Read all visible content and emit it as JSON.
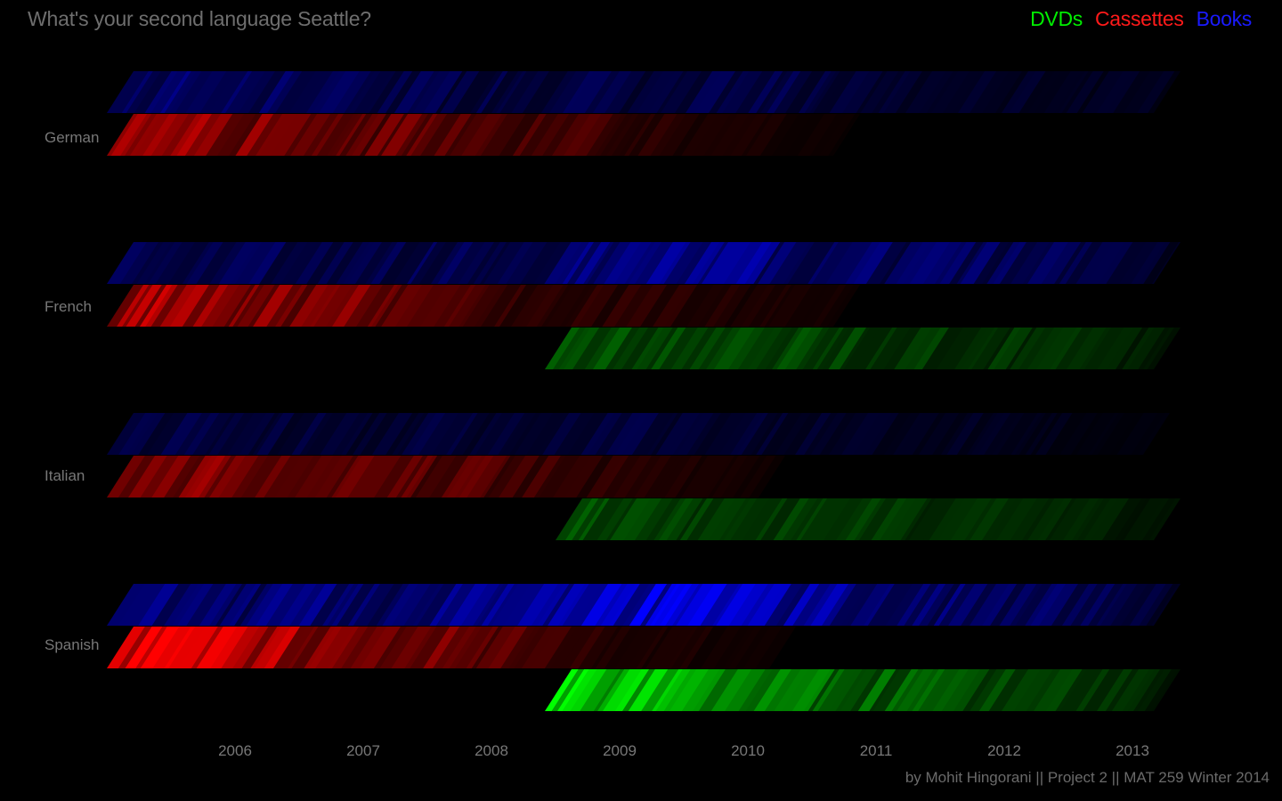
{
  "title": "What's your second language Seattle?",
  "legend": [
    {
      "label": "DVDs",
      "color": "#00ee00"
    },
    {
      "label": "Cassettes",
      "color": "#ff1a1a"
    },
    {
      "label": "Books",
      "color": "#1a1aff"
    }
  ],
  "footer": "by Mohit Hingorani || Project 2 || MAT 259 Winter 2014",
  "chart_data": {
    "type": "heatmap",
    "title": "What's your second language Seattle?",
    "x_axis": {
      "label": "",
      "tick_labels": [
        "2006",
        "2007",
        "2008",
        "2009",
        "2010",
        "2011",
        "2012",
        "2013"
      ],
      "range": [
        "2005-07",
        "2013-10"
      ]
    },
    "y_categories": [
      "German",
      "French",
      "Italian",
      "Spanish"
    ],
    "media": [
      {
        "name": "DVDs",
        "color": "#00ff00"
      },
      {
        "name": "Cassettes",
        "color": "#ff0000"
      },
      {
        "name": "Books",
        "color": "#0000ff"
      }
    ],
    "series": [
      {
        "language": "German",
        "medium": "Books",
        "start": "2005-07",
        "end": "2013-09",
        "relative_intensity": [
          0.32,
          0.45,
          0.38,
          0.35,
          0.3,
          0.34,
          0.28,
          0.26,
          0.25,
          0.24,
          0.3,
          0.24,
          0.22,
          0.26,
          0.3,
          0.22,
          0.2,
          0.18,
          0.16,
          0.15,
          0.14,
          0.13,
          0.12,
          0.1
        ]
      },
      {
        "language": "German",
        "medium": "Cassettes",
        "start": "2005-07",
        "end": "2011-03",
        "relative_intensity": [
          0.75,
          0.7,
          0.55,
          0.45,
          0.4,
          0.35,
          0.38,
          0.3,
          0.28,
          0.3,
          0.25,
          0.2,
          0.14,
          0.1,
          0.08,
          0.06,
          0.04
        ]
      },
      {
        "language": "French",
        "medium": "Books",
        "start": "2005-07",
        "end": "2013-09",
        "relative_intensity": [
          0.4,
          0.35,
          0.33,
          0.35,
          0.3,
          0.28,
          0.3,
          0.3,
          0.28,
          0.32,
          0.5,
          0.45,
          0.48,
          0.55,
          0.5,
          0.42,
          0.38,
          0.35,
          0.4,
          0.32,
          0.3,
          0.28,
          0.25,
          0.14
        ]
      },
      {
        "language": "French",
        "medium": "Cassettes",
        "start": "2005-07",
        "end": "2011-03",
        "relative_intensity": [
          0.65,
          0.6,
          0.55,
          0.48,
          0.45,
          0.5,
          0.4,
          0.3,
          0.22,
          0.2,
          0.18,
          0.15,
          0.14,
          0.12,
          0.1,
          0.08,
          0.06
        ]
      },
      {
        "language": "French",
        "medium": "DVDs",
        "start": "2008-12",
        "end": "2013-09",
        "relative_intensity": [
          0.35,
          0.3,
          0.28,
          0.3,
          0.25,
          0.28,
          0.25,
          0.22,
          0.2,
          0.2,
          0.18,
          0.16,
          0.14,
          0.1
        ]
      },
      {
        "language": "Italian",
        "medium": "Books",
        "start": "2005-07",
        "end": "2013-08",
        "relative_intensity": [
          0.28,
          0.24,
          0.22,
          0.24,
          0.2,
          0.18,
          0.2,
          0.22,
          0.2,
          0.24,
          0.26,
          0.24,
          0.22,
          0.2,
          0.18,
          0.16,
          0.15,
          0.14,
          0.12,
          0.1,
          0.08,
          0.06,
          0.04
        ]
      },
      {
        "language": "Italian",
        "medium": "Cassettes",
        "start": "2005-07",
        "end": "2010-08",
        "relative_intensity": [
          0.6,
          0.5,
          0.45,
          0.38,
          0.34,
          0.3,
          0.36,
          0.26,
          0.2,
          0.16,
          0.12,
          0.08,
          0.05
        ]
      },
      {
        "language": "Italian",
        "medium": "DVDs",
        "start": "2009-01",
        "end": "2013-09",
        "relative_intensity": [
          0.32,
          0.28,
          0.26,
          0.24,
          0.28,
          0.22,
          0.2,
          0.22,
          0.18,
          0.16,
          0.18,
          0.14,
          0.1,
          0.06
        ]
      },
      {
        "language": "Spanish",
        "medium": "Books",
        "start": "2005-07",
        "end": "2013-09",
        "relative_intensity": [
          0.5,
          0.48,
          0.45,
          0.42,
          0.45,
          0.4,
          0.42,
          0.45,
          0.5,
          0.8,
          0.75,
          0.78,
          0.85,
          0.8,
          0.7,
          0.6,
          0.5,
          0.45,
          0.4,
          0.38,
          0.35,
          0.32,
          0.3,
          0.12
        ]
      },
      {
        "language": "Spanish",
        "medium": "Cassettes",
        "start": "2005-07",
        "end": "2010-09",
        "relative_intensity": [
          1.0,
          0.85,
          0.8,
          0.6,
          0.5,
          0.45,
          0.4,
          0.3,
          0.2,
          0.14,
          0.1,
          0.07,
          0.04
        ]
      },
      {
        "language": "Spanish",
        "medium": "DVDs",
        "start": "2008-12",
        "end": "2013-09",
        "relative_intensity": [
          1.0,
          0.7,
          0.65,
          0.55,
          0.45,
          0.5,
          0.4,
          0.35,
          0.32,
          0.3,
          0.28,
          0.24,
          0.2,
          0.08
        ]
      }
    ]
  }
}
